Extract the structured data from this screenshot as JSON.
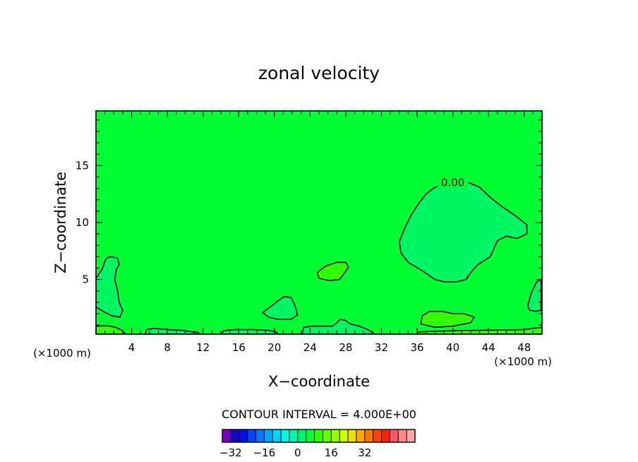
{
  "chart_data": {
    "type": "contour",
    "title": "zonal velocity",
    "xlabel": "X−coordinate",
    "ylabel": "Z−coordinate",
    "x_unit_left": "(×1000 m)",
    "x_unit_right": "(×1000 m)",
    "xlim": [
      0,
      50
    ],
    "ylim": [
      0.2,
      19.8
    ],
    "x_ticks": [
      4,
      8,
      12,
      16,
      20,
      24,
      28,
      32,
      36,
      40,
      44,
      48
    ],
    "x_tick_labels": [
      "4",
      "8",
      "12",
      "16",
      "20",
      "24",
      "28",
      "32",
      "36",
      "40",
      "44",
      "48"
    ],
    "y_ticks": [
      5,
      10,
      15
    ],
    "y_tick_labels": [
      "5",
      "10",
      "15"
    ],
    "contour_interval_text": "CONTOUR INTERVAL = 4.000E+00",
    "contour_label": "0.00",
    "contour_label_pos": [
      40,
      13.5
    ],
    "background_color": "#00ff33",
    "regions": [
      {
        "level": -4,
        "color": "#00f763",
        "outline": true,
        "points": [
          [
            34.2,
            7.3
          ],
          [
            34.0,
            8.3
          ],
          [
            34.5,
            9.3
          ],
          [
            35.3,
            10.6
          ],
          [
            36.2,
            11.7
          ],
          [
            37.0,
            12.5
          ],
          [
            38.0,
            13.1
          ],
          [
            39.5,
            13.5
          ],
          [
            41.5,
            13.6
          ],
          [
            43.0,
            13.1
          ],
          [
            44.2,
            12.2
          ],
          [
            45.5,
            11.4
          ],
          [
            47.0,
            10.6
          ],
          [
            48.3,
            9.8
          ],
          [
            48.3,
            9.0
          ],
          [
            47.2,
            8.6
          ],
          [
            46.0,
            8.8
          ],
          [
            45.0,
            8.4
          ],
          [
            44.2,
            7.0
          ],
          [
            42.8,
            6.3
          ],
          [
            42.0,
            5.6
          ],
          [
            41.5,
            5.0
          ],
          [
            40.5,
            4.8
          ],
          [
            39.0,
            4.8
          ],
          [
            38.0,
            5.0
          ],
          [
            36.5,
            5.8
          ],
          [
            35.0,
            6.5
          ]
        ]
      },
      {
        "level": -4,
        "color": "#00f763",
        "outline": true,
        "points": [
          [
            0,
            5.1
          ],
          [
            0.7,
            5.9
          ],
          [
            1.1,
            6.8
          ],
          [
            1.5,
            7.0
          ],
          [
            2.4,
            6.9
          ],
          [
            2.6,
            6.3
          ],
          [
            2.3,
            5.9
          ],
          [
            2.1,
            5.0
          ],
          [
            2.4,
            4.1
          ],
          [
            2.6,
            3.0
          ],
          [
            3.0,
            2.3
          ],
          [
            2.7,
            1.7
          ],
          [
            1.8,
            1.8
          ],
          [
            0.8,
            2.2
          ],
          [
            0,
            2.6
          ]
        ]
      },
      {
        "level": -4,
        "color": "#00f763",
        "outline": true,
        "points": [
          [
            18.7,
            2.1
          ],
          [
            19.4,
            2.5
          ],
          [
            20.2,
            3.0
          ],
          [
            21.1,
            3.5
          ],
          [
            21.9,
            3.4
          ],
          [
            22.3,
            2.7
          ],
          [
            22.6,
            1.9
          ],
          [
            21.9,
            1.5
          ],
          [
            20.4,
            1.5
          ],
          [
            19.3,
            1.7
          ]
        ]
      },
      {
        "level": -4,
        "color": "#00f763",
        "outline": true,
        "points": [
          [
            49.9,
            5.0
          ],
          [
            49.4,
            4.8
          ],
          [
            48.8,
            3.8
          ],
          [
            48.4,
            2.7
          ],
          [
            48.6,
            2.3
          ],
          [
            49.3,
            2.2
          ],
          [
            49.9,
            2.3
          ]
        ]
      },
      {
        "level": 4,
        "color": "#33ff00",
        "outline": true,
        "points": [
          [
            24.8,
            5.6
          ],
          [
            25.8,
            6.2
          ],
          [
            27.0,
            6.5
          ],
          [
            28.0,
            6.5
          ],
          [
            28.3,
            6.1
          ],
          [
            27.9,
            5.6
          ],
          [
            27.3,
            5.0
          ],
          [
            26.2,
            4.9
          ],
          [
            25.0,
            5.1
          ]
        ]
      },
      {
        "level": 4,
        "color": "#33ff00",
        "outline": true,
        "points": [
          [
            36.4,
            1.1
          ],
          [
            36.6,
            1.8
          ],
          [
            37.4,
            2.2
          ],
          [
            38.8,
            2.2
          ],
          [
            40.0,
            2.0
          ],
          [
            41.2,
            2.0
          ],
          [
            42.4,
            1.7
          ],
          [
            42.0,
            1.2
          ],
          [
            40.0,
            0.9
          ],
          [
            38.0,
            0.8
          ]
        ]
      },
      {
        "level": -4,
        "color": "#00f763",
        "outline": true,
        "points": [
          [
            23.1,
            0.2
          ],
          [
            23.3,
            0.8
          ],
          [
            24.3,
            0.9
          ],
          [
            25.5,
            0.9
          ],
          [
            26.5,
            0.9
          ],
          [
            27.0,
            1.2
          ],
          [
            27.4,
            1.5
          ],
          [
            28.0,
            1.4
          ],
          [
            28.5,
            1.1
          ],
          [
            29.5,
            0.9
          ],
          [
            30.5,
            0.6
          ],
          [
            31.2,
            0.2
          ]
        ]
      },
      {
        "level": -4,
        "color": "#00f763",
        "outline": true,
        "points": [
          [
            5.5,
            0.2
          ],
          [
            5.7,
            0.6
          ],
          [
            6.5,
            0.7
          ],
          [
            8.0,
            0.6
          ],
          [
            9.6,
            0.55
          ],
          [
            10.8,
            0.4
          ],
          [
            11.5,
            0.35
          ],
          [
            11.6,
            0.2
          ]
        ]
      },
      {
        "level": -4,
        "color": "#00f763",
        "outline": true,
        "points": [
          [
            14.0,
            0.2
          ],
          [
            14.3,
            0.5
          ],
          [
            15.5,
            0.6
          ],
          [
            17.5,
            0.6
          ],
          [
            19.2,
            0.55
          ],
          [
            20.2,
            0.4
          ],
          [
            20.4,
            0.2
          ]
        ]
      },
      {
        "level": 4,
        "color": "#33ff00",
        "outline": true,
        "points": [
          [
            0,
            0.2
          ],
          [
            0,
            0.9
          ],
          [
            1.2,
            0.95
          ],
          [
            2.2,
            0.8
          ],
          [
            3.0,
            0.5
          ],
          [
            3.3,
            0.2
          ]
        ]
      },
      {
        "level": 4,
        "color": "#33ff00",
        "outline": true,
        "points": [
          [
            36.0,
            0.2
          ],
          [
            36.2,
            0.4
          ],
          [
            40.0,
            0.5
          ],
          [
            44.0,
            0.55
          ],
          [
            48.0,
            0.6
          ],
          [
            50.0,
            0.8
          ],
          [
            50.0,
            0.2
          ]
        ]
      }
    ],
    "colorbar": {
      "colors": [
        "#7a00c0",
        "#1f00c8",
        "#0011e6",
        "#0044ff",
        "#0077ff",
        "#00aaff",
        "#00d4ff",
        "#00f5e6",
        "#00f5b0",
        "#00f070",
        "#00ff33",
        "#33ff00",
        "#66ff00",
        "#99ff00",
        "#ccff00",
        "#eedd00",
        "#ffaa00",
        "#ff7700",
        "#ff4400",
        "#ff2200",
        "#ff5566",
        "#ff8888",
        "#ffa8a8"
      ],
      "min": -36,
      "step": 4,
      "ticks": [
        -32,
        -16,
        0,
        16,
        32
      ],
      "tick_labels": [
        "−32",
        "−16",
        "0",
        "16",
        "32"
      ]
    }
  }
}
